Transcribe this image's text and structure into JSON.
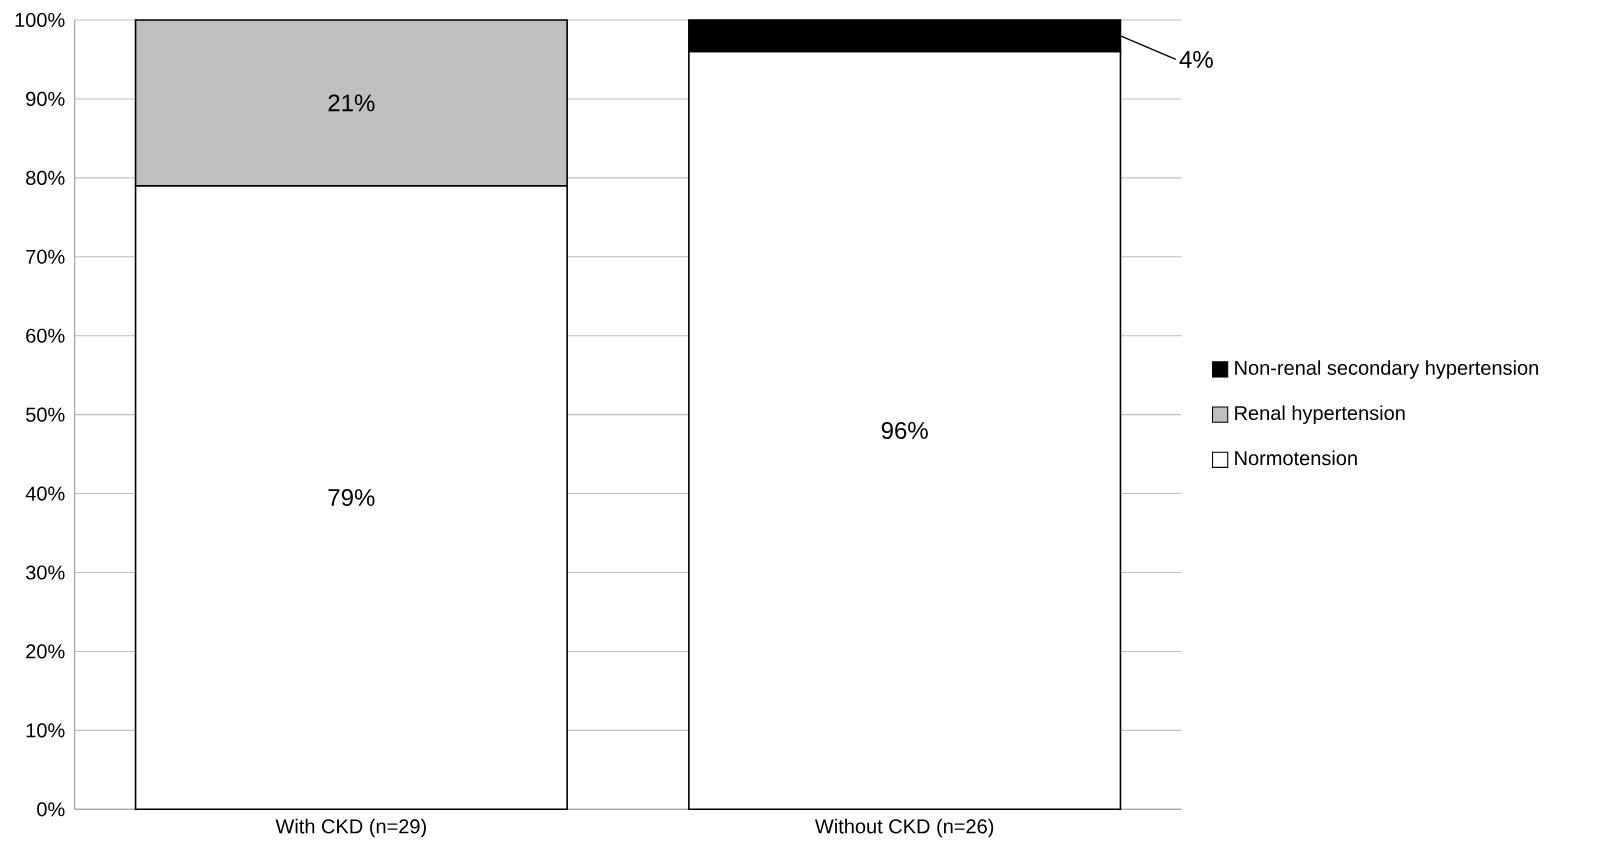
{
  "chart_data": {
    "type": "bar",
    "stacked": true,
    "categories": [
      "With CKD (n=29)",
      "Without CKD (n=26)"
    ],
    "series": [
      {
        "name": "Normotension",
        "color": "#ffffff",
        "values": [
          79,
          96
        ],
        "value_labels": [
          "79%",
          "96%"
        ]
      },
      {
        "name": "Renal hypertension",
        "color": "#bfbfbf",
        "values": [
          21,
          null
        ],
        "value_labels": [
          "21%",
          null
        ]
      },
      {
        "name": "Non-renal secondary hypertension",
        "color": "#000000",
        "values": [
          null,
          4
        ],
        "value_labels": [
          null,
          "4%"
        ]
      }
    ],
    "ylim": [
      0,
      100
    ],
    "yticks": [
      {
        "value": 0,
        "label": "0%"
      },
      {
        "value": 10,
        "label": "10%"
      },
      {
        "value": 20,
        "label": "20%"
      },
      {
        "value": 30,
        "label": "30%"
      },
      {
        "value": 40,
        "label": "40%"
      },
      {
        "value": 50,
        "label": "50%"
      },
      {
        "value": 60,
        "label": "60%"
      },
      {
        "value": 70,
        "label": "70%"
      },
      {
        "value": 80,
        "label": "80%"
      },
      {
        "value": 90,
        "label": "90%"
      },
      {
        "value": 100,
        "label": "100%"
      }
    ],
    "grid": "y",
    "legend": "right"
  }
}
